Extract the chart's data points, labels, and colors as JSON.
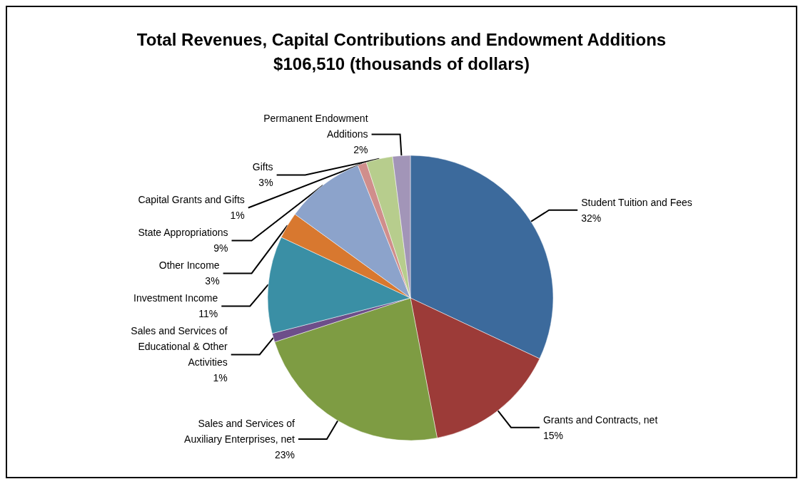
{
  "chart_data": {
    "type": "pie",
    "title": "Total Revenues, Capital Contributions and Endowment Additions",
    "subtitle": "$106,510 (thousands of dollars)",
    "categories": [
      "Student Tuition and Fees",
      "Grants and Contracts, net",
      "Sales and Services of\nAuxiliary Enterprises, net",
      "Sales and Services of\nEducational & Other\nActivities",
      "Investment Income",
      "Other Income",
      "State Appropriations",
      "Capital Grants and Gifts",
      "Gifts",
      "Permanent Endowment\nAdditions"
    ],
    "values": [
      32,
      15,
      23,
      1,
      11,
      3,
      9,
      1,
      3,
      2
    ],
    "value_labels": [
      "32%",
      "15%",
      "23%",
      "1%",
      "11%",
      "3%",
      "9%",
      "1%",
      "3%",
      "2%"
    ],
    "colors": [
      "#3c6a9c",
      "#9c3b38",
      "#7e9c43",
      "#6d4e8a",
      "#3a8fa5",
      "#d8782f",
      "#8ca3cb",
      "#d08e8c",
      "#b7cd8d",
      "#a295b8"
    ],
    "legend": false
  }
}
